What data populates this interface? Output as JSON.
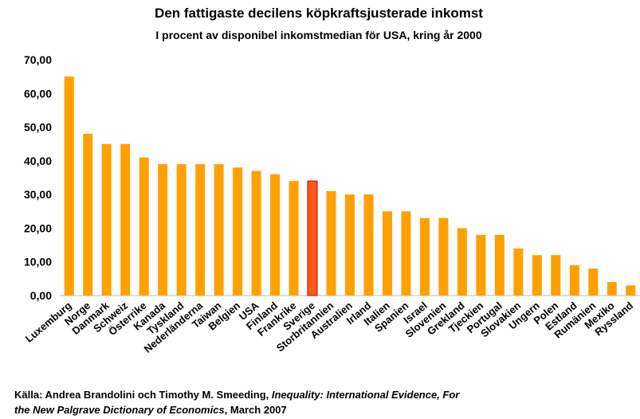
{
  "chart_data": {
    "type": "bar",
    "title": "Den fattigaste decilens köpkraftsjusterade inkomst",
    "subtitle": "I procent av disponibel inkomstmedian för USA, kring år 2000",
    "categories": [
      "Luxemburg",
      "Norge",
      "Danmark",
      "Schweiz",
      "Österrike",
      "Kanada",
      "Tyskland",
      "Nederländerna",
      "Taiwan",
      "Belgien",
      "USA",
      "Finland",
      "Frankrike",
      "Sverige",
      "Storbritannien",
      "Australien",
      "Irland",
      "Italien",
      "Spanien",
      "Israel",
      "Slovenien",
      "Grekland",
      "Tjeckien",
      "Portugal",
      "Slovakien",
      "Ungern",
      "Polen",
      "Estland",
      "Rumänien",
      "Mexiko",
      "Ryssland"
    ],
    "values": [
      65,
      48,
      45,
      45,
      41,
      39,
      39,
      39,
      39,
      38,
      37,
      36,
      34,
      34,
      31,
      30,
      30,
      25,
      25,
      23,
      23,
      20,
      18,
      18,
      14,
      12,
      12,
      9,
      8,
      4,
      3
    ],
    "colors": [
      "#FFA000",
      "#FFA000",
      "#FFA000",
      "#FFA000",
      "#FFA000",
      "#FFA000",
      "#FFA000",
      "#FFA000",
      "#FFA000",
      "#FFA000",
      "#FFA000",
      "#FFA000",
      "#FFA000",
      "#FF5A14",
      "#FFA000",
      "#FFA000",
      "#FFA000",
      "#FFA000",
      "#FFA000",
      "#FFA000",
      "#FFA000",
      "#FFA000",
      "#FFA000",
      "#FFA000",
      "#FFA000",
      "#FFA000",
      "#FFA000",
      "#FFA000",
      "#FFA000",
      "#FFA000",
      "#FFA000"
    ],
    "ylim": [
      0,
      70
    ],
    "yticks": [
      {
        "value": 0,
        "label": "0,00"
      },
      {
        "value": 10,
        "label": "10,00"
      },
      {
        "value": 20,
        "label": "20,00"
      },
      {
        "value": 30,
        "label": "30,00"
      },
      {
        "value": 40,
        "label": "40,00"
      },
      {
        "value": 50,
        "label": "50,00"
      },
      {
        "value": 60,
        "label": "60,00"
      },
      {
        "value": 70,
        "label": "70,00"
      }
    ],
    "grid": false,
    "source": {
      "lines": [
        [
          {
            "text": "Källa: Andrea Brandolini och Timothy M. Smeeding, ",
            "italic": false
          },
          {
            "text": "Inequality: International Evidence, For",
            "italic": true
          }
        ],
        [
          {
            "text": "the New Palgrave Dictionary of Economics",
            "italic": true
          },
          {
            "text": ", March 2007",
            "italic": false
          }
        ]
      ]
    }
  }
}
